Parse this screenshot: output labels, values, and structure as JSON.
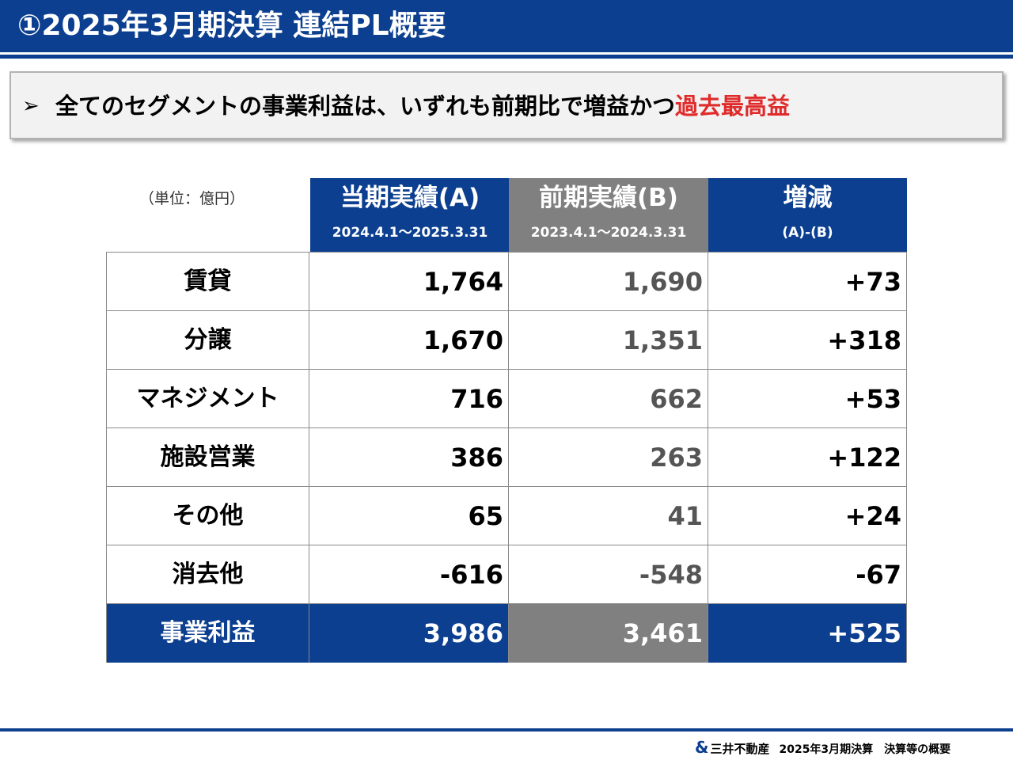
{
  "title": "①2025年3月期決算 連結PL概要",
  "headline": {
    "bullet": "➢",
    "text": "全てのセグメントの事業利益は、いずれも前期比で増益かつ",
    "highlight": "過去最高益"
  },
  "table": {
    "unit": "（単位：億円）",
    "headers": [
      {
        "main": "当期実績(A)",
        "sub": "2024.4.1～2025.3.31"
      },
      {
        "main": "前期実績(B)",
        "sub": "2023.4.1～2024.3.31"
      },
      {
        "main": "増減",
        "sub": "(A)-(B)"
      }
    ],
    "rows": [
      {
        "label": "賃貸",
        "a": "1,764",
        "b": "1,690",
        "diff": "+73"
      },
      {
        "label": "分譲",
        "a": "1,670",
        "b": "1,351",
        "diff": "+318"
      },
      {
        "label": "マネジメント",
        "a": "716",
        "b": "662",
        "diff": "+53"
      },
      {
        "label": "施設営業",
        "a": "386",
        "b": "263",
        "diff": "+122"
      },
      {
        "label": "その他",
        "a": "65",
        "b": "41",
        "diff": "+24"
      },
      {
        "label": "消去他",
        "a": "-616",
        "b": "-548",
        "diff": "-67"
      }
    ],
    "total": {
      "label": "事業利益",
      "a": "3,986",
      "b": "3,461",
      "diff": "+525"
    }
  },
  "footer": {
    "logo": "&",
    "company": "三井不動産",
    "doc": "2025年3月期決算　決算等の概要"
  },
  "colors": {
    "brand_blue": "#0c3f8f",
    "prior_gray": "#808080",
    "highlight_red": "#e02b2b"
  }
}
